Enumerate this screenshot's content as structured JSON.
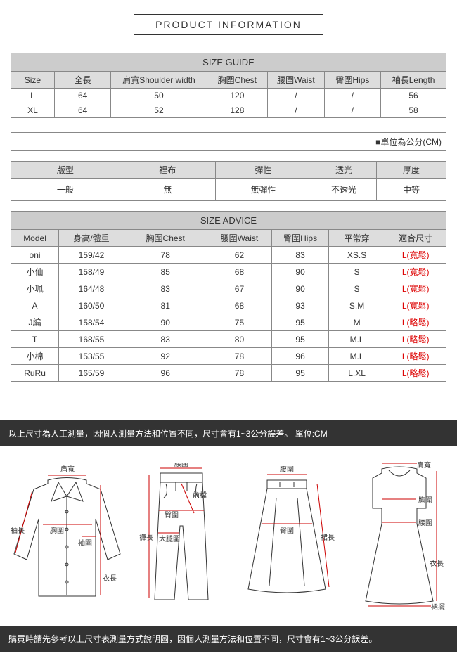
{
  "title": "PRODUCT INFORMATION",
  "sizeGuide": {
    "heading": "SIZE GUIDE",
    "columns": [
      "Size",
      "全長",
      "肩寬Shoulder width",
      "胸圍Chest",
      "腰圍Waist",
      "臀圍Hips",
      "袖長Length"
    ],
    "rows": [
      [
        "L",
        "64",
        "50",
        "120",
        "/",
        "/",
        "56"
      ],
      [
        "XL",
        "64",
        "52",
        "128",
        "/",
        "/",
        "58"
      ]
    ],
    "unit": "■單位為公分(CM)"
  },
  "attributes": {
    "columns": [
      "版型",
      "裡布",
      "彈性",
      "透光",
      "厚度"
    ],
    "values": [
      "一般",
      "無",
      "無彈性",
      "不透光",
      "中等"
    ]
  },
  "sizeAdvice": {
    "heading": "SIZE ADVICE",
    "columns": [
      "Model",
      "身高/體重",
      "胸圍Chest",
      "腰圍Waist",
      "臀圍Hips",
      "平常穿",
      "適合尺寸"
    ],
    "rows": [
      [
        "oni",
        "159/42",
        "78",
        "62",
        "83",
        "XS.S",
        "L(寬鬆)"
      ],
      [
        "小仙",
        "158/49",
        "85",
        "68",
        "90",
        "S",
        "L(寬鬆)"
      ],
      [
        "小珮",
        "164/48",
        "83",
        "67",
        "90",
        "S",
        "L(寬鬆)"
      ],
      [
        "A",
        "160/50",
        "81",
        "68",
        "93",
        "S.M",
        "L(寬鬆)"
      ],
      [
        "J編",
        "158/54",
        "90",
        "75",
        "95",
        "M",
        "L(略鬆)"
      ],
      [
        "T",
        "168/55",
        "83",
        "80",
        "95",
        "M.L",
        "L(略鬆)"
      ],
      [
        "小棉",
        "153/55",
        "92",
        "78",
        "96",
        "M.L",
        "L(略鬆)"
      ],
      [
        "RuRu",
        "165/59",
        "96",
        "78",
        "95",
        "L.XL",
        "L(略鬆)"
      ]
    ]
  },
  "footer": {
    "topText": "以上尺寸為人工測量，因個人測量方法和位置不同，尺寸會有1~3公分誤差。 單位:CM",
    "bottomText": "購買時請先參考以上尺寸表測量方式說明圖，因個人測量方法和位置不同，尺寸會有1~3公分誤差。",
    "diagramLabels": {
      "shoulder": "肩寬",
      "chest": "胸圍",
      "sleeve": "袖長",
      "armhole": "袖圍",
      "length": "衣長",
      "waist": "腰圍",
      "hip": "臀圍",
      "thigh": "大腿圍",
      "pantLen": "褲長",
      "frontRise": "前檔",
      "skirtLen": "裙長",
      "hemLen": "裙擺"
    }
  },
  "colors": {
    "border": "#888888",
    "headBg": "#cccccc",
    "subHeadBg": "#dddddd",
    "darkBar": "#333333",
    "redText": "#dd0000",
    "measureLine": "#cc0000"
  }
}
